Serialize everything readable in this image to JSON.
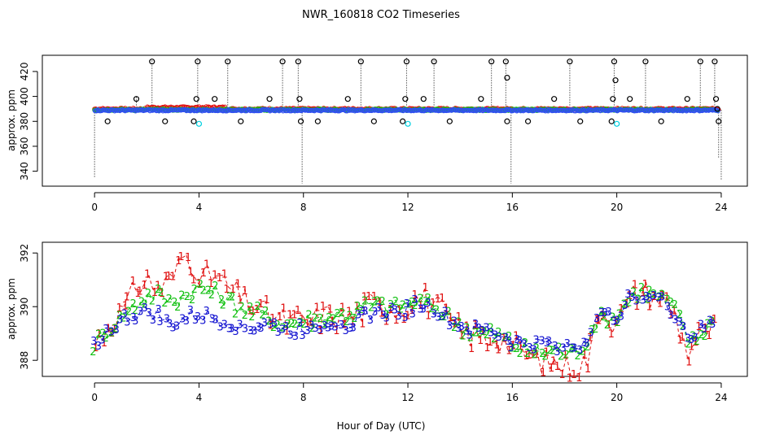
{
  "title": "NWR_160818  CO2 Timeseries",
  "xlabel": "Hour of Day (UTC)",
  "colors": {
    "frame": "#000000",
    "series1": "#e01010",
    "series2": "#10c010",
    "series3": "#1010d0",
    "cyan": "#00d0e0",
    "top_blue": "#3050f0"
  },
  "chart_data": [
    {
      "type": "scatter",
      "name": "top-panel",
      "ylabel": "approx. ppm",
      "xlim": [
        -2,
        25
      ],
      "ylim": [
        328,
        433
      ],
      "xticks": [
        0,
        4,
        8,
        12,
        16,
        20,
        24
      ],
      "yticks": [
        340,
        360,
        380,
        400,
        420
      ],
      "ytick_labels": [
        "340",
        "360",
        "380",
        "400",
        "420"
      ],
      "baseline": 389.3,
      "outliers_high": [
        {
          "x": 1.6,
          "y": 398
        },
        {
          "x": 2.2,
          "y": 428
        },
        {
          "x": 3.9,
          "y": 398
        },
        {
          "x": 3.95,
          "y": 428
        },
        {
          "x": 4.6,
          "y": 398
        },
        {
          "x": 5.1,
          "y": 428
        },
        {
          "x": 6.7,
          "y": 398
        },
        {
          "x": 7.2,
          "y": 428
        },
        {
          "x": 7.8,
          "y": 428
        },
        {
          "x": 7.85,
          "y": 398
        },
        {
          "x": 9.7,
          "y": 398
        },
        {
          "x": 10.2,
          "y": 428
        },
        {
          "x": 11.9,
          "y": 398
        },
        {
          "x": 11.95,
          "y": 428
        },
        {
          "x": 12.6,
          "y": 398
        },
        {
          "x": 13.0,
          "y": 428
        },
        {
          "x": 14.8,
          "y": 398
        },
        {
          "x": 15.2,
          "y": 428
        },
        {
          "x": 15.75,
          "y": 428
        },
        {
          "x": 15.8,
          "y": 415
        },
        {
          "x": 17.6,
          "y": 398
        },
        {
          "x": 18.2,
          "y": 428
        },
        {
          "x": 19.9,
          "y": 428
        },
        {
          "x": 19.85,
          "y": 398
        },
        {
          "x": 19.95,
          "y": 413
        },
        {
          "x": 20.5,
          "y": 398
        },
        {
          "x": 21.1,
          "y": 428
        },
        {
          "x": 22.7,
          "y": 398
        },
        {
          "x": 23.2,
          "y": 428
        },
        {
          "x": 23.75,
          "y": 428
        },
        {
          "x": 23.8,
          "y": 398
        },
        {
          "x": 23.85,
          "y": 390
        }
      ],
      "outliers_low": [
        {
          "x": 0.5,
          "y": 380
        },
        {
          "x": 2.7,
          "y": 380
        },
        {
          "x": 3.8,
          "y": 380
        },
        {
          "x": 5.6,
          "y": 380
        },
        {
          "x": 7.9,
          "y": 380
        },
        {
          "x": 8.55,
          "y": 380
        },
        {
          "x": 10.7,
          "y": 380
        },
        {
          "x": 11.8,
          "y": 380
        },
        {
          "x": 13.6,
          "y": 380
        },
        {
          "x": 15.8,
          "y": 380
        },
        {
          "x": 16.6,
          "y": 380
        },
        {
          "x": 18.6,
          "y": 380
        },
        {
          "x": 19.8,
          "y": 380
        },
        {
          "x": 21.7,
          "y": 380
        },
        {
          "x": 23.9,
          "y": 380
        }
      ],
      "outliers_cyan": [
        {
          "x": 4.0,
          "y": 378
        },
        {
          "x": 12.0,
          "y": 378
        },
        {
          "x": 20.0,
          "y": 378
        }
      ],
      "dotted_spikes": [
        {
          "x": 0.0,
          "y0": 389,
          "y1": 335
        },
        {
          "x": 1.6,
          "y0": 389,
          "y1": 400
        },
        {
          "x": 2.2,
          "y0": 389,
          "y1": 430
        },
        {
          "x": 3.95,
          "y0": 389,
          "y1": 431
        },
        {
          "x": 5.1,
          "y0": 389,
          "y1": 430
        },
        {
          "x": 7.2,
          "y0": 389,
          "y1": 430
        },
        {
          "x": 7.8,
          "y0": 389,
          "y1": 430
        },
        {
          "x": 7.95,
          "y0": 389,
          "y1": 330
        },
        {
          "x": 10.2,
          "y0": 389,
          "y1": 430
        },
        {
          "x": 11.95,
          "y0": 389,
          "y1": 432
        },
        {
          "x": 13.0,
          "y0": 389,
          "y1": 430
        },
        {
          "x": 15.2,
          "y0": 389,
          "y1": 430
        },
        {
          "x": 15.75,
          "y0": 389,
          "y1": 430
        },
        {
          "x": 15.95,
          "y0": 389,
          "y1": 330
        },
        {
          "x": 18.2,
          "y0": 389,
          "y1": 430
        },
        {
          "x": 19.9,
          "y0": 389,
          "y1": 432
        },
        {
          "x": 21.1,
          "y0": 389,
          "y1": 430
        },
        {
          "x": 23.2,
          "y0": 389,
          "y1": 430
        },
        {
          "x": 23.75,
          "y0": 389,
          "y1": 430
        },
        {
          "x": 23.9,
          "y0": 389,
          "y1": 350
        },
        {
          "x": 24.0,
          "y0": 389,
          "y1": 333
        }
      ]
    },
    {
      "type": "line",
      "name": "bottom-panel",
      "ylabel": "approx. ppm",
      "xlim": [
        -2,
        25
      ],
      "ylim": [
        387.4,
        392.4
      ],
      "xticks": [
        0,
        4,
        8,
        12,
        16,
        20,
        24
      ],
      "yticks": [
        388,
        390,
        392
      ],
      "ytick_labels": [
        "388",
        "390",
        "392"
      ],
      "series": [
        {
          "name": "1",
          "color": "#e01010",
          "offset": 0.35,
          "amp": 1.0,
          "points": [
            [
              0.0,
              388.6
            ],
            [
              0.3,
              389.0
            ],
            [
              0.6,
              389.4
            ],
            [
              1.0,
              389.8
            ],
            [
              1.3,
              390.1
            ],
            [
              1.6,
              390.8
            ],
            [
              2.0,
              391.0
            ],
            [
              2.4,
              390.7
            ],
            [
              2.8,
              390.9
            ],
            [
              3.1,
              391.2
            ],
            [
              3.4,
              392.0
            ],
            [
              3.8,
              391.6
            ],
            [
              4.2,
              391.0
            ],
            [
              4.6,
              391.2
            ],
            [
              5.0,
              390.8
            ],
            [
              5.4,
              390.5
            ],
            [
              5.8,
              390.2
            ],
            [
              6.2,
              390.0
            ],
            [
              6.6,
              389.7
            ],
            [
              7.0,
              389.6
            ],
            [
              7.4,
              389.4
            ],
            [
              7.8,
              389.5
            ],
            [
              8.2,
              389.4
            ],
            [
              8.6,
              389.6
            ],
            [
              9.0,
              389.7
            ],
            [
              9.4,
              389.6
            ],
            [
              9.8,
              389.6
            ],
            [
              10.2,
              389.8
            ],
            [
              10.6,
              390.1
            ],
            [
              11.0,
              390.0
            ],
            [
              11.4,
              390.0
            ],
            [
              11.8,
              389.9
            ],
            [
              12.2,
              390.3
            ],
            [
              12.6,
              390.3
            ],
            [
              13.0,
              390.1
            ],
            [
              13.4,
              389.7
            ],
            [
              13.8,
              389.2
            ],
            [
              14.2,
              389.0
            ],
            [
              14.6,
              388.9
            ],
            [
              15.0,
              388.8
            ],
            [
              15.4,
              388.9
            ],
            [
              15.8,
              388.7
            ],
            [
              16.2,
              388.4
            ],
            [
              16.6,
              388.2
            ],
            [
              17.0,
              388.0
            ],
            [
              17.4,
              387.9
            ],
            [
              17.8,
              387.9
            ],
            [
              18.2,
              387.7
            ],
            [
              18.6,
              387.8
            ],
            [
              19.0,
              388.2
            ],
            [
              19.2,
              389.5
            ],
            [
              19.4,
              390.0
            ],
            [
              19.8,
              389.5
            ],
            [
              20.2,
              389.8
            ],
            [
              20.6,
              390.4
            ],
            [
              21.0,
              390.6
            ],
            [
              21.4,
              390.4
            ],
            [
              21.8,
              390.3
            ],
            [
              22.2,
              389.8
            ],
            [
              22.4,
              389.2
            ],
            [
              22.7,
              388.3
            ],
            [
              23.0,
              388.8
            ],
            [
              23.4,
              389.0
            ],
            [
              23.8,
              389.3
            ]
          ]
        },
        {
          "name": "2",
          "color": "#10c010",
          "offset": 0.2,
          "amp": 0.6,
          "points": [
            [
              0.0,
              388.6
            ],
            [
              0.4,
              389.0
            ],
            [
              0.8,
              389.4
            ],
            [
              1.2,
              389.8
            ],
            [
              1.6,
              390.1
            ],
            [
              2.0,
              390.4
            ],
            [
              2.4,
              390.5
            ],
            [
              2.8,
              390.2
            ],
            [
              3.2,
              390.3
            ],
            [
              3.6,
              390.5
            ],
            [
              4.0,
              390.7
            ],
            [
              4.4,
              390.6
            ],
            [
              4.8,
              390.4
            ],
            [
              5.2,
              390.2
            ],
            [
              5.6,
              390.0
            ],
            [
              6.0,
              389.8
            ],
            [
              6.4,
              389.7
            ],
            [
              6.8,
              389.5
            ],
            [
              7.2,
              389.4
            ],
            [
              7.6,
              389.4
            ],
            [
              8.0,
              389.5
            ],
            [
              8.4,
              389.5
            ],
            [
              8.8,
              389.6
            ],
            [
              9.2,
              389.7
            ],
            [
              9.6,
              389.7
            ],
            [
              10.0,
              389.8
            ],
            [
              10.4,
              390.0
            ],
            [
              10.8,
              390.1
            ],
            [
              11.2,
              390.0
            ],
            [
              11.6,
              390.0
            ],
            [
              12.0,
              390.1
            ],
            [
              12.4,
              390.2
            ],
            [
              12.8,
              390.1
            ],
            [
              13.2,
              389.9
            ],
            [
              13.6,
              389.6
            ],
            [
              14.0,
              389.3
            ],
            [
              14.4,
              389.1
            ],
            [
              14.8,
              389.0
            ],
            [
              15.2,
              389.0
            ],
            [
              15.6,
              388.9
            ],
            [
              16.0,
              388.6
            ],
            [
              16.4,
              388.4
            ],
            [
              16.8,
              388.3
            ],
            [
              17.2,
              388.3
            ],
            [
              17.6,
              388.4
            ],
            [
              18.0,
              388.3
            ],
            [
              18.4,
              388.3
            ],
            [
              18.8,
              388.6
            ],
            [
              19.2,
              389.5
            ],
            [
              19.6,
              389.6
            ],
            [
              20.0,
              389.6
            ],
            [
              20.4,
              390.2
            ],
            [
              20.8,
              390.6
            ],
            [
              21.2,
              390.5
            ],
            [
              21.6,
              390.4
            ],
            [
              22.0,
              390.2
            ],
            [
              22.4,
              389.6
            ],
            [
              22.8,
              388.6
            ],
            [
              23.2,
              389.0
            ],
            [
              23.6,
              389.4
            ],
            [
              24.0,
              389.4
            ]
          ]
        },
        {
          "name": "3",
          "color": "#1010d0",
          "offset": 0.1,
          "amp": 0.5,
          "points": [
            [
              0.0,
              388.6
            ],
            [
              0.4,
              389.0
            ],
            [
              0.8,
              389.3
            ],
            [
              1.2,
              389.6
            ],
            [
              1.6,
              389.7
            ],
            [
              2.0,
              389.8
            ],
            [
              2.4,
              389.7
            ],
            [
              2.8,
              389.3
            ],
            [
              3.2,
              389.4
            ],
            [
              3.6,
              389.6
            ],
            [
              4.0,
              389.7
            ],
            [
              4.4,
              389.6
            ],
            [
              4.8,
              389.5
            ],
            [
              5.2,
              389.4
            ],
            [
              5.6,
              389.3
            ],
            [
              6.0,
              389.2
            ],
            [
              6.4,
              389.3
            ],
            [
              6.8,
              389.3
            ],
            [
              7.2,
              389.2
            ],
            [
              7.6,
              389.1
            ],
            [
              8.0,
              389.2
            ],
            [
              8.4,
              389.3
            ],
            [
              8.8,
              389.4
            ],
            [
              9.2,
              389.4
            ],
            [
              9.6,
              389.4
            ],
            [
              10.0,
              389.5
            ],
            [
              10.4,
              389.7
            ],
            [
              10.8,
              389.8
            ],
            [
              11.2,
              389.8
            ],
            [
              11.6,
              389.8
            ],
            [
              12.0,
              389.9
            ],
            [
              12.4,
              390.1
            ],
            [
              12.8,
              390.0
            ],
            [
              13.2,
              389.8
            ],
            [
              13.6,
              389.5
            ],
            [
              14.0,
              389.3
            ],
            [
              14.4,
              389.1
            ],
            [
              14.8,
              389.1
            ],
            [
              15.2,
              389.1
            ],
            [
              15.6,
              388.9
            ],
            [
              16.0,
              388.7
            ],
            [
              16.4,
              388.6
            ],
            [
              16.8,
              388.6
            ],
            [
              17.2,
              388.6
            ],
            [
              17.6,
              388.6
            ],
            [
              18.0,
              388.5
            ],
            [
              18.4,
              388.5
            ],
            [
              18.8,
              388.7
            ],
            [
              19.2,
              389.6
            ],
            [
              19.6,
              389.6
            ],
            [
              20.0,
              389.7
            ],
            [
              20.4,
              390.2
            ],
            [
              20.8,
              390.5
            ],
            [
              21.2,
              390.4
            ],
            [
              21.6,
              390.3
            ],
            [
              22.0,
              390.0
            ],
            [
              22.4,
              389.5
            ],
            [
              22.8,
              388.8
            ],
            [
              23.2,
              389.1
            ],
            [
              23.6,
              389.4
            ],
            [
              24.0,
              389.4
            ]
          ]
        }
      ]
    }
  ]
}
